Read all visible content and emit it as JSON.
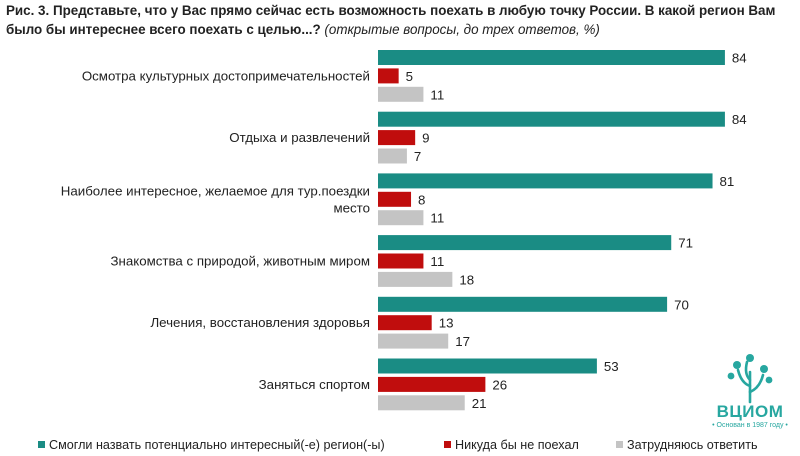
{
  "title": {
    "main": "Рис. 3. Представьте, что у Вас прямо сейчас есть возможность поехать в любую точку России. В какой регион Вам было бы интереснее всего поехать с целью...?",
    "note": "(открытые вопросы, до трех ответов, %)"
  },
  "logo": {
    "name": "ВЦИОМ",
    "since": "• Основан в 1987 году •"
  },
  "chart_data": {
    "type": "bar",
    "orientation": "horizontal",
    "categories": [
      [
        "Осмотра культурных достопримечательностей"
      ],
      [
        "Отдыха и развлечений"
      ],
      [
        "Наиболее интересное, желаемое для тур.поездки",
        "место"
      ],
      [
        "Знакомства с природой, животным миром"
      ],
      [
        "Лечения, восстановления здоровья"
      ],
      [
        "Заняться спортом"
      ]
    ],
    "series": [
      {
        "name": "Смогли назвать потенциально интересный(-е) регион(-ы)",
        "color": "#1a8c84",
        "values": [
          84,
          84,
          81,
          71,
          70,
          53
        ]
      },
      {
        "name": "Никуда бы не поехал",
        "color": "#c00d0d",
        "values": [
          5,
          9,
          8,
          11,
          13,
          26
        ]
      },
      {
        "name": "Затрудняюсь ответить",
        "color": "#c4c4c4",
        "values": [
          11,
          7,
          11,
          18,
          17,
          21
        ]
      }
    ],
    "data_labels": true,
    "xlim": [
      0,
      100
    ],
    "legend_position": "bottom",
    "grid": false
  }
}
